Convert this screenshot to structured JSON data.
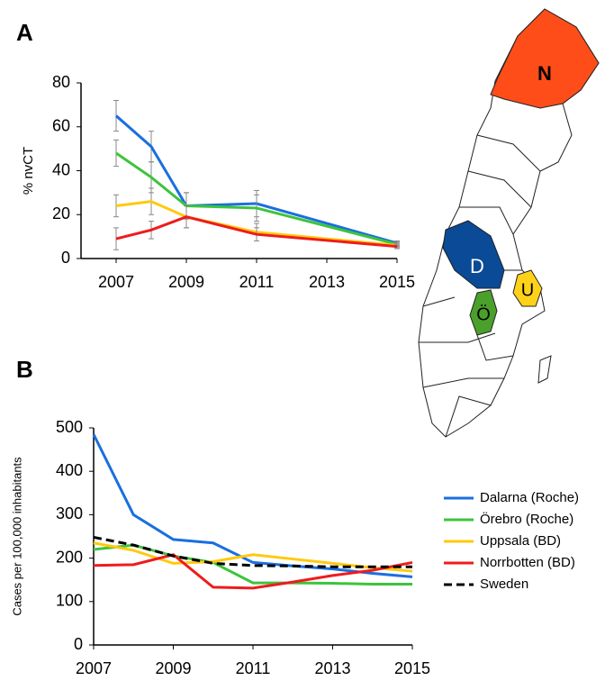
{
  "panel_labels": [
    "A",
    "B"
  ],
  "map": {
    "labels": [
      "N",
      "D",
      "Ö",
      "U"
    ]
  },
  "chart_data": [
    {
      "type": "line",
      "y_label": "% nvCT",
      "x": [
        2007,
        2008,
        2009,
        2011,
        2015
      ],
      "xlim": [
        2006,
        2015
      ],
      "xticks": [
        2007,
        2009,
        2011,
        2013,
        2015
      ],
      "ylim": [
        0,
        80
      ],
      "yticks": [
        0,
        20,
        40,
        60,
        80
      ],
      "error_color": "#888888",
      "series": [
        {
          "color": "#1a6fdf",
          "values": [
            65,
            51,
            24,
            25,
            7
          ],
          "errors": [
            7,
            7,
            6,
            6,
            1
          ]
        },
        {
          "color": "#3cc43c",
          "values": [
            48,
            37,
            24,
            23,
            6.5
          ],
          "errors": [
            6,
            7,
            6,
            6,
            1
          ]
        },
        {
          "color": "#ffc90e",
          "values": [
            24,
            26,
            19,
            12,
            6
          ],
          "errors": [
            5,
            6,
            5,
            4,
            1
          ]
        },
        {
          "color": "#ee1c1c",
          "values": [
            9,
            13,
            19,
            11,
            5.5
          ],
          "errors": [
            5,
            4,
            5,
            3,
            1
          ]
        }
      ]
    },
    {
      "type": "line",
      "y_label": "Cases per 100,000 inhabitants",
      "x": [
        2007,
        2008,
        2009,
        2010,
        2011,
        2012,
        2013,
        2014,
        2015
      ],
      "xlim": [
        2007,
        2015
      ],
      "xticks": [
        2007,
        2009,
        2011,
        2013,
        2015
      ],
      "ylim": [
        0,
        500
      ],
      "yticks": [
        0,
        100,
        200,
        300,
        400,
        500
      ],
      "legend": "right",
      "series": [
        {
          "name": "Dalarna (Roche)",
          "color": "#1a6fdf",
          "values": [
            485,
            300,
            243,
            235,
            190,
            182,
            175,
            165,
            157
          ]
        },
        {
          "name": "Örebro (Roche)",
          "color": "#3cc43c",
          "values": [
            220,
            230,
            205,
            190,
            143,
            143,
            142,
            140,
            140
          ]
        },
        {
          "name": "Uppsala (BD)",
          "color": "#ffc90e",
          "values": [
            235,
            218,
            188,
            192,
            208,
            198,
            188,
            178,
            170
          ]
        },
        {
          "name": "Norrbotten (BD)",
          "color": "#ee1c1c",
          "values": [
            183,
            185,
            208,
            133,
            131,
            145,
            160,
            172,
            190
          ]
        },
        {
          "name": "Sweden",
          "color": "#000000",
          "line_style": "dashed",
          "values": [
            248,
            230,
            205,
            188,
            183,
            182,
            180,
            180,
            180
          ]
        }
      ]
    }
  ]
}
